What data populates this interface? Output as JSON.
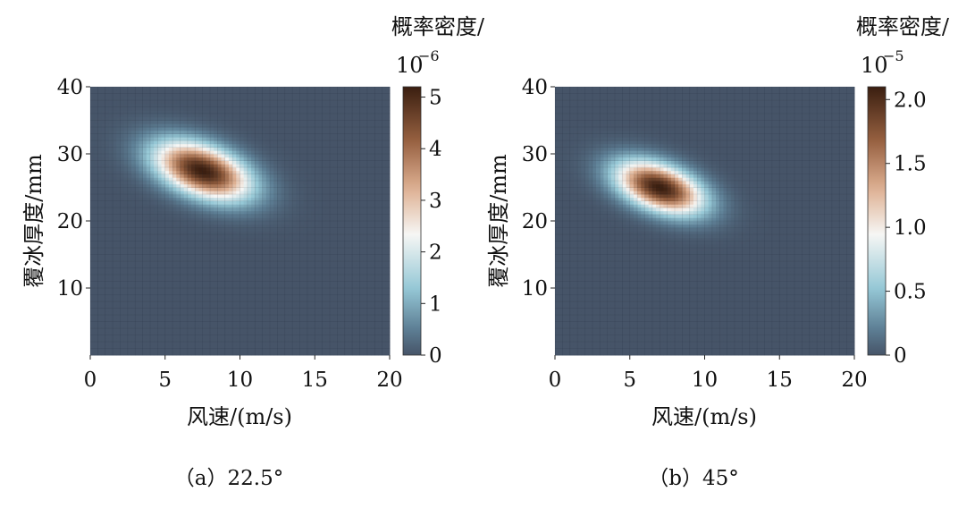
{
  "chart_data": [
    {
      "type": "heatmap",
      "caption": "（a）22.5°",
      "xlabel": "风速/(m/s)",
      "ylabel": "覆冰厚度/mm",
      "xlim": [
        0,
        20
      ],
      "ylim": [
        0,
        40
      ],
      "xticks": [
        "0",
        "5",
        "10",
        "15",
        "20"
      ],
      "yticks": [
        "10",
        "20",
        "30",
        "40"
      ],
      "colorbar": {
        "title": "概率密度/",
        "scale_label": "10",
        "scale_exponent": "−6",
        "min": 0,
        "max": 5.2,
        "ticks": [
          "0",
          "1",
          "2",
          "3",
          "4",
          "5"
        ]
      },
      "peak": {
        "wind_speed": 7.5,
        "ice_thickness": 27.5,
        "density": 5.2
      },
      "spread": {
        "wind_speed_sd": 2.2,
        "ice_thickness_sd": 3.0,
        "correlation": -0.45
      }
    },
    {
      "type": "heatmap",
      "caption": "（b）45°",
      "xlabel": "风速/(m/s)",
      "ylabel": "覆冰厚度/mm",
      "xlim": [
        0,
        20
      ],
      "ylim": [
        0,
        40
      ],
      "xticks": [
        "0",
        "5",
        "10",
        "15",
        "20"
      ],
      "yticks": [
        "10",
        "20",
        "30",
        "40"
      ],
      "colorbar": {
        "title": "概率密度/",
        "scale_label": "10",
        "scale_exponent": "−5",
        "min": 0,
        "max": 2.1,
        "ticks": [
          "0",
          "0.5",
          "1.0",
          "1.5",
          "2.0"
        ]
      },
      "peak": {
        "wind_speed": 7.0,
        "ice_thickness": 25.0,
        "density": 2.1
      },
      "spread": {
        "wind_speed_sd": 2.0,
        "ice_thickness_sd": 2.7,
        "correlation": -0.45
      }
    }
  ]
}
